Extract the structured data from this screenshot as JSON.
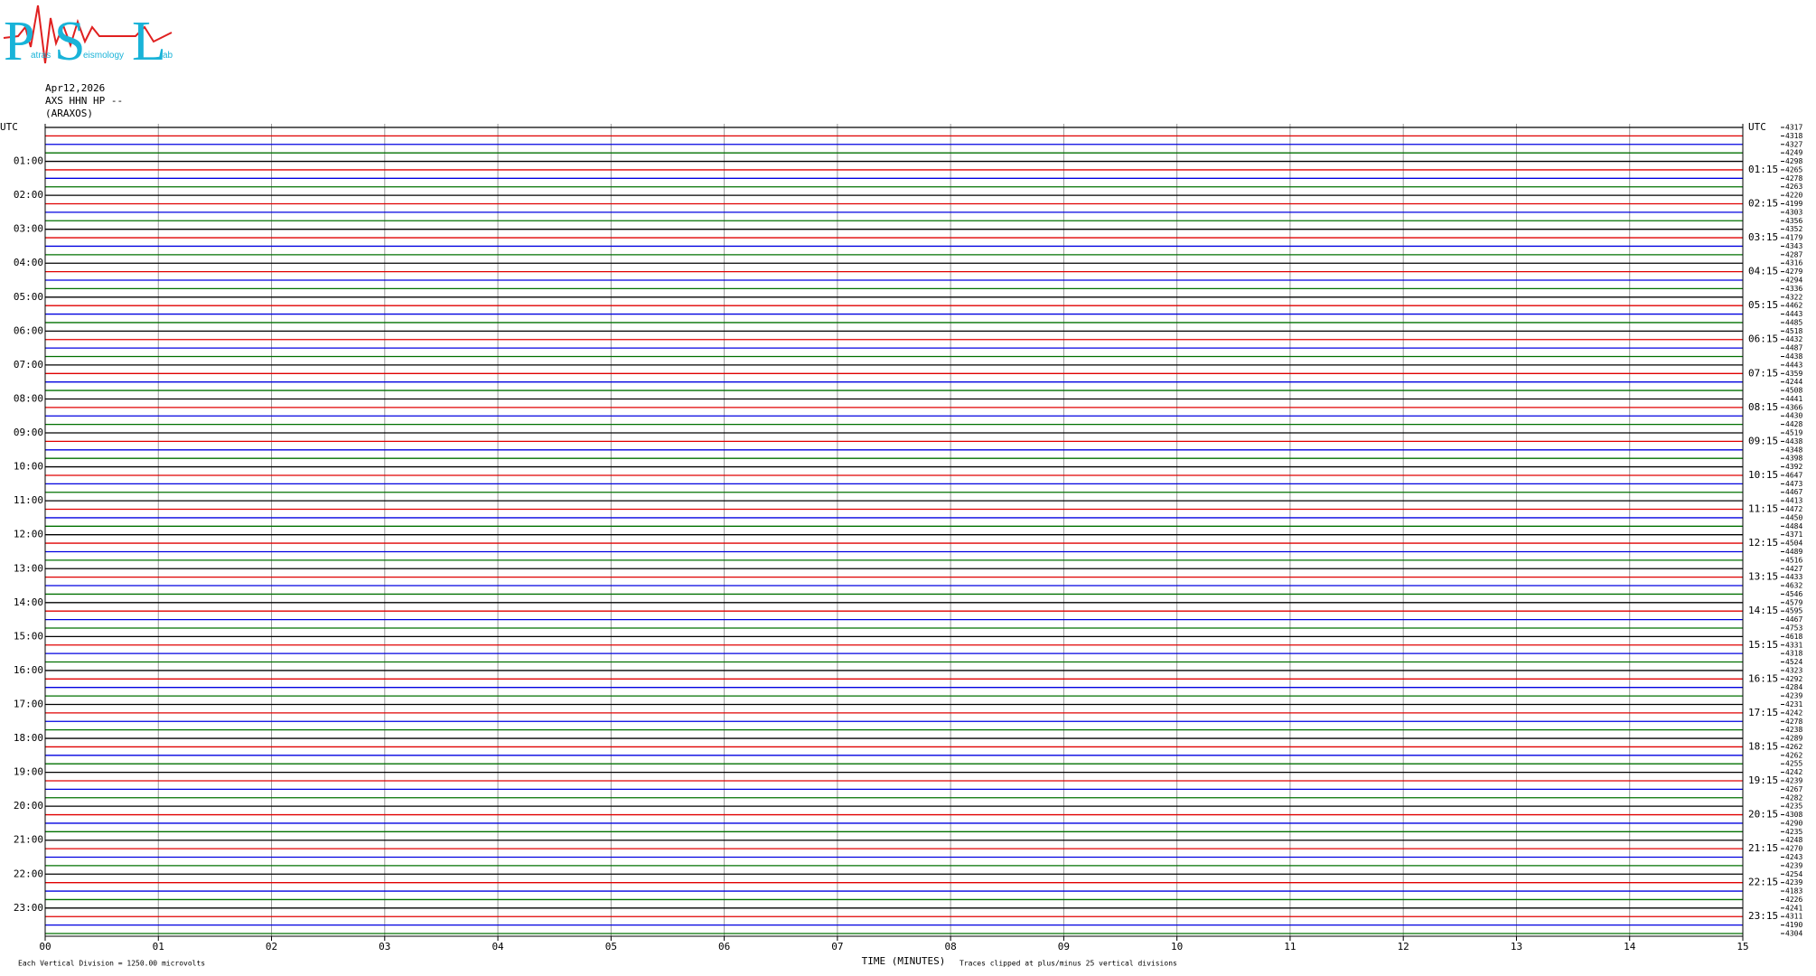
{
  "logo": {
    "letters": [
      "P",
      "S",
      "L"
    ],
    "words": [
      "atras",
      "eismology",
      "ab"
    ]
  },
  "header": {
    "date": "Apr12,2026",
    "station": "AXS HHN HP --",
    "location": "(ARAXOS)"
  },
  "chart_data": {
    "type": "helicorder",
    "xlim": [
      0,
      15
    ],
    "xticks": [
      {
        "value": 0,
        "label": "00"
      },
      {
        "value": 1,
        "label": "01"
      },
      {
        "value": 2,
        "label": "02"
      },
      {
        "value": 3,
        "label": "03"
      },
      {
        "value": 4,
        "label": "04"
      },
      {
        "value": 5,
        "label": "05"
      },
      {
        "value": 6,
        "label": "06"
      },
      {
        "value": 7,
        "label": "07"
      },
      {
        "value": 8,
        "label": "08"
      },
      {
        "value": 9,
        "label": "09"
      },
      10,
      11,
      12,
      13,
      14,
      15
    ],
    "x_label": "TIME (MINUTES)",
    "note_left": "Each Vertical Division = 1250.00 microvolts",
    "note_right": "Traces clipped at plus/minus 25 vertical divisions",
    "trace_colors": [
      "#000000",
      "#e00000",
      "#0000e0",
      "#007000"
    ],
    "grid": true,
    "left_labels": [
      "UTC",
      "01:00",
      "02:00",
      "03:00",
      "04:00",
      "05:00",
      "06:00",
      "07:00",
      "08:00",
      "09:00",
      "10:00",
      "11:00",
      "12:00",
      "13:00",
      "14:00",
      "15:00",
      "16:00",
      "17:00",
      "18:00",
      "19:00",
      "20:00",
      "21:00",
      "22:00",
      "23:00"
    ],
    "right_labels": [
      "UTC",
      "01:15",
      "02:15",
      "03:15",
      "04:15",
      "05:15",
      "06:15",
      "07:15",
      "08:15",
      "09:15",
      "10:15",
      "11:15",
      "12:15",
      "13:15",
      "14:15",
      "15:15",
      "16:15",
      "17:15",
      "18:15",
      "19:15",
      "20:15",
      "21:15",
      "22:15",
      "23:15"
    ],
    "row_offsets": [
      4317,
      4318,
      4327,
      4249,
      4298,
      4265,
      4278,
      4263,
      4220,
      4199,
      4303,
      4356,
      4352,
      4179,
      4343,
      4287,
      4316,
      4279,
      4294,
      4336,
      4322,
      4462,
      4443,
      4485,
      4518,
      4432,
      4487,
      4438,
      4443,
      4359,
      4244,
      4508,
      4441,
      4366,
      4430,
      4428,
      4519,
      4438,
      4348,
      4398,
      4392,
      4647,
      4473,
      4467,
      4413,
      4472,
      4450,
      4484,
      4371,
      4504,
      4489,
      4516,
      4427,
      4433,
      4632,
      4546,
      4579,
      4595,
      4467,
      4753,
      4618,
      4331,
      4318,
      4524,
      4323,
      4292,
      4284,
      4239,
      4231,
      4242,
      4278,
      4238,
      4289,
      4262,
      4262,
      4255,
      4242,
      4239,
      4267,
      4282,
      4235,
      4308,
      4290,
      4235,
      4248,
      4270,
      4243,
      4239,
      4254,
      4239,
      4183,
      4226,
      4241,
      4311,
      4190,
      4304
    ]
  }
}
